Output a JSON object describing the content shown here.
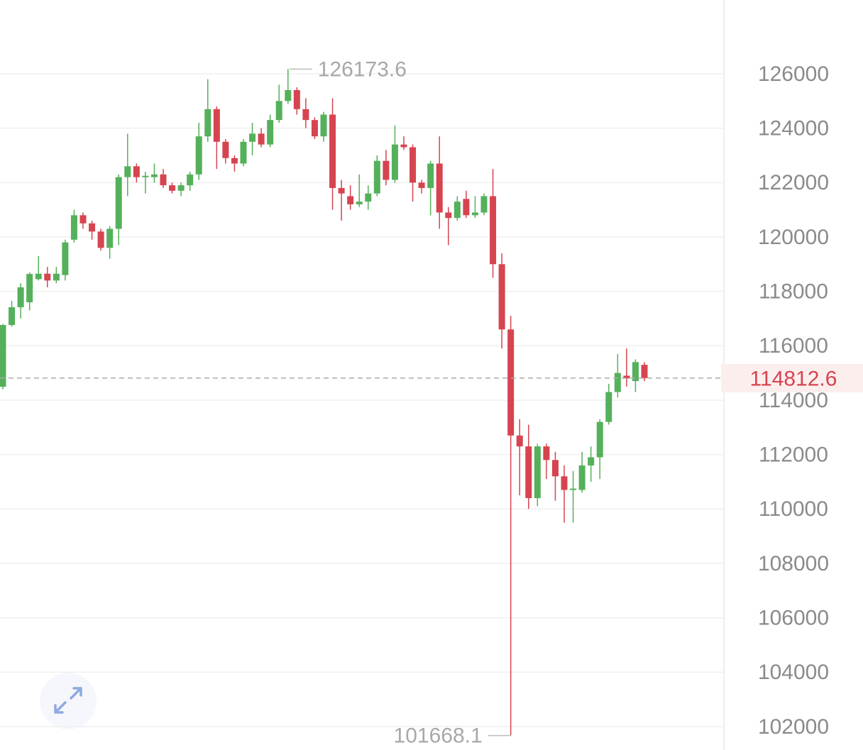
{
  "chart_data": {
    "type": "candlestick",
    "ylim": [
      101138,
      128713
    ],
    "yticks": [
      102000,
      104000,
      106000,
      108000,
      110000,
      112000,
      114000,
      116000,
      118000,
      120000,
      122000,
      124000,
      126000
    ],
    "grid": true,
    "up_color": "#55b05b",
    "down_color": "#d6444f",
    "open": [
      114494,
      116764,
      117416,
      117600,
      118450,
      118650,
      118400,
      118600,
      119900,
      120800,
      120500,
      120200,
      119600,
      120300,
      122200,
      122600,
      122200,
      122200,
      122300,
      121900,
      121700,
      121900,
      122300,
      123700,
      124700,
      123500,
      122900,
      122700,
      123500,
      123800,
      123400,
      124300,
      125000,
      125400,
      124700,
      124300,
      123700,
      124500,
      121800,
      121500,
      121200,
      121300,
      121600,
      122800,
      122100,
      123400,
      123300,
      122000,
      121800,
      122700,
      120900,
      120700,
      121400,
      120800,
      120900,
      121500,
      119000,
      116600,
      112700,
      112300,
      110400,
      112300,
      111800,
      111200,
      110700,
      110700,
      111600,
      111900,
      113200,
      114300,
      114900,
      114700,
      115300
    ],
    "high": [
      116800,
      117650,
      118300,
      118700,
      119300,
      118900,
      118900,
      119900,
      121000,
      120900,
      120600,
      120300,
      120400,
      122300,
      123800,
      122700,
      122400,
      122700,
      122500,
      122000,
      122000,
      122400,
      124200,
      125800,
      124800,
      123600,
      123000,
      123600,
      124200,
      124000,
      124500,
      125600,
      126173.6,
      125500,
      125100,
      124400,
      124600,
      125100,
      122100,
      121900,
      122300,
      121900,
      123000,
      123200,
      124100,
      123700,
      123400,
      122100,
      122800,
      123700,
      121100,
      121500,
      121700,
      121500,
      121600,
      122500,
      119400,
      117100,
      113300,
      113100,
      112400,
      112400,
      112100,
      111600,
      111400,
      112100,
      112300,
      113300,
      114600,
      115700,
      115900,
      115500,
      115400
    ],
    "low": [
      114400,
      116700,
      117000,
      117300,
      118400,
      118150,
      118300,
      118400,
      119800,
      120300,
      119900,
      119500,
      119200,
      119700,
      121500,
      122000,
      121600,
      122000,
      121800,
      121600,
      121500,
      121700,
      122100,
      123500,
      122500,
      122700,
      122400,
      122600,
      123000,
      123300,
      123300,
      124200,
      124900,
      124500,
      124000,
      123600,
      123500,
      121000,
      120600,
      121000,
      121100,
      121000,
      121500,
      121900,
      122000,
      123200,
      121300,
      121600,
      120800,
      120300,
      119700,
      120600,
      120700,
      120700,
      120800,
      118500,
      115900,
      101668.1,
      110500,
      110000,
      110100,
      111100,
      110300,
      109500,
      109500,
      110600,
      111000,
      111100,
      113100,
      114100,
      114500,
      114300,
      114700
    ],
    "close": [
      116764,
      117416,
      118150,
      118640,
      118650,
      118400,
      118650,
      119800,
      120800,
      120500,
      120200,
      119600,
      120300,
      122200,
      122600,
      122200,
      122250,
      122300,
      121900,
      121700,
      121900,
      122300,
      123700,
      124700,
      123500,
      122900,
      122700,
      123500,
      123800,
      123400,
      124300,
      125000,
      125400,
      124700,
      124300,
      123700,
      124500,
      121800,
      121600,
      121200,
      121300,
      121600,
      122800,
      122100,
      123400,
      123300,
      122000,
      121800,
      122700,
      120900,
      120700,
      121300,
      120800,
      120900,
      121500,
      119000,
      116600,
      112700,
      112300,
      110400,
      112300,
      111800,
      111200,
      110700,
      110750,
      111600,
      111900,
      113200,
      114300,
      115000,
      114800,
      115400,
      114812.6
    ],
    "high_marker": 126173.6,
    "low_marker": 101668.1,
    "last_price": 114812.6
  }
}
